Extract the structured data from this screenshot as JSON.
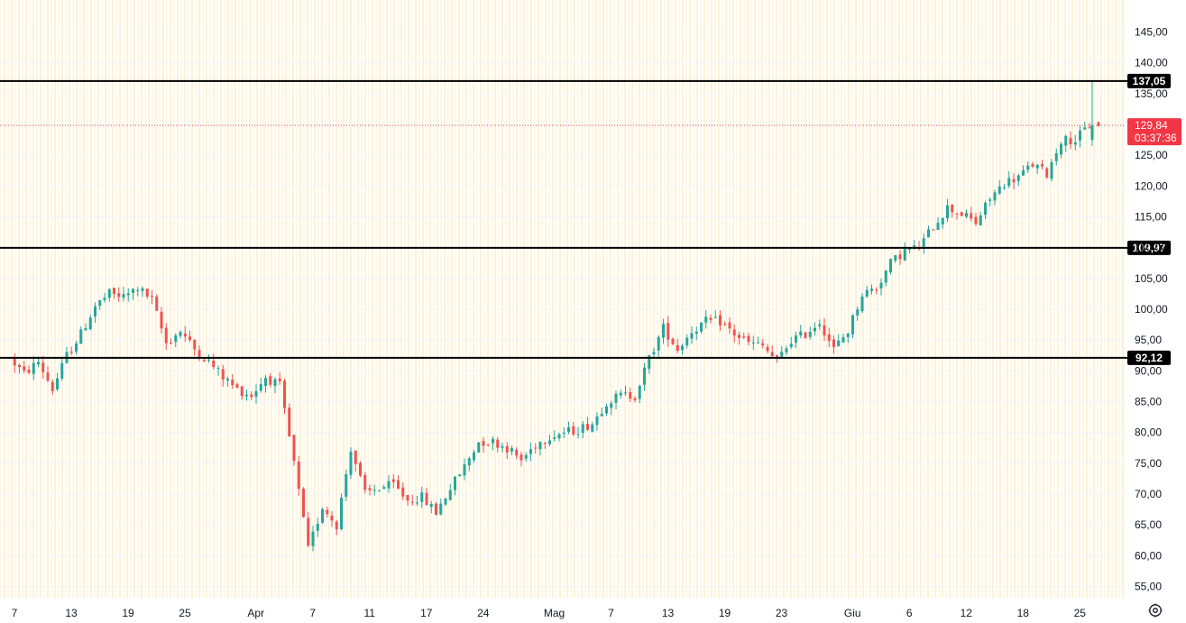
{
  "chart_data": {
    "type": "candlestick",
    "yticks": [
      "55,00",
      "60,00",
      "65,00",
      "70,00",
      "75,00",
      "80,00",
      "85,00",
      "90,00",
      "95,00",
      "100,00",
      "105,00",
      "110,00",
      "115,00",
      "120,00",
      "125,00",
      "130,00",
      "135,00",
      "140,00",
      "145,00"
    ],
    "ylim": [
      52,
      148
    ],
    "xticks": [
      {
        "label": "7",
        "day": 0
      },
      {
        "label": "13",
        "day": 4
      },
      {
        "label": "19",
        "day": 8
      },
      {
        "label": "25",
        "day": 12
      },
      {
        "label": "Apr",
        "day": 17
      },
      {
        "label": "7",
        "day": 21
      },
      {
        "label": "11",
        "day": 25
      },
      {
        "label": "17",
        "day": 29
      },
      {
        "label": "24",
        "day": 33
      },
      {
        "label": "Mag",
        "day": 38
      },
      {
        "label": "7",
        "day": 42
      },
      {
        "label": "13",
        "day": 46
      },
      {
        "label": "19",
        "day": 50
      },
      {
        "label": "23",
        "day": 54
      },
      {
        "label": "Giu",
        "day": 59
      },
      {
        "label": "6",
        "day": 63
      },
      {
        "label": "12",
        "day": 67
      },
      {
        "label": "18",
        "day": 71
      },
      {
        "label": "25",
        "day": 75
      }
    ],
    "levels": [
      {
        "value": 137.05,
        "label": "137,05"
      },
      {
        "value": 109.97,
        "label": "109,97"
      },
      {
        "value": 92.12,
        "label": "92,12"
      }
    ],
    "last_price": {
      "value": 129.84,
      "label": "129,84",
      "countdown": "03:37:36"
    },
    "up_color": "#26a69a",
    "down_color": "#ef5350",
    "close_path": [
      [
        0,
        92
      ],
      [
        1,
        89.5
      ],
      [
        2,
        91.5
      ],
      [
        3,
        87
      ],
      [
        4,
        92.5
      ],
      [
        5,
        96
      ],
      [
        6,
        100.5
      ],
      [
        7,
        102.5
      ],
      [
        8,
        102
      ],
      [
        9,
        103.5
      ],
      [
        10,
        101.5
      ],
      [
        11,
        94.5
      ],
      [
        12,
        96.5
      ],
      [
        13,
        93.5
      ],
      [
        14,
        91.5
      ],
      [
        15,
        89
      ],
      [
        16,
        87
      ],
      [
        17,
        86
      ],
      [
        18,
        89
      ],
      [
        19,
        87.5
      ],
      [
        20,
        75
      ],
      [
        21,
        61
      ],
      [
        22,
        68
      ],
      [
        23,
        65
      ],
      [
        24,
        77.5
      ],
      [
        25,
        70
      ],
      [
        26,
        71
      ],
      [
        27,
        71.5
      ],
      [
        28,
        69
      ],
      [
        29,
        69.5
      ],
      [
        30,
        67
      ],
      [
        31,
        71
      ],
      [
        32,
        74.5
      ],
      [
        33,
        78.5
      ],
      [
        34,
        78.5
      ],
      [
        35,
        77.5
      ],
      [
        36,
        75.5
      ],
      [
        37,
        78
      ],
      [
        38,
        79.5
      ],
      [
        39,
        80
      ],
      [
        40,
        80.5
      ],
      [
        41,
        81.5
      ],
      [
        42,
        85
      ],
      [
        43,
        86
      ],
      [
        44,
        86
      ],
      [
        45,
        92
      ],
      [
        46,
        97
      ],
      [
        47,
        93.5
      ],
      [
        48,
        96.5
      ],
      [
        49,
        98
      ],
      [
        50,
        98
      ],
      [
        51,
        96
      ],
      [
        52,
        94.5
      ],
      [
        53,
        94
      ],
      [
        54,
        91.5
      ],
      [
        55,
        95
      ],
      [
        56,
        96
      ],
      [
        57,
        98
      ],
      [
        58,
        93.5
      ],
      [
        59,
        96.5
      ],
      [
        60,
        102.5
      ],
      [
        61,
        103.5
      ],
      [
        62,
        107.5
      ],
      [
        63,
        109.5
      ],
      [
        64,
        110
      ],
      [
        65,
        113.5
      ],
      [
        66,
        116.5
      ],
      [
        67,
        115.5
      ],
      [
        68,
        114
      ],
      [
        69,
        118
      ],
      [
        70,
        120.5
      ],
      [
        71,
        121.5
      ],
      [
        72,
        123.5
      ],
      [
        73,
        122
      ],
      [
        74,
        127.5
      ],
      [
        75,
        127.5
      ],
      [
        76,
        129.84
      ]
    ]
  }
}
